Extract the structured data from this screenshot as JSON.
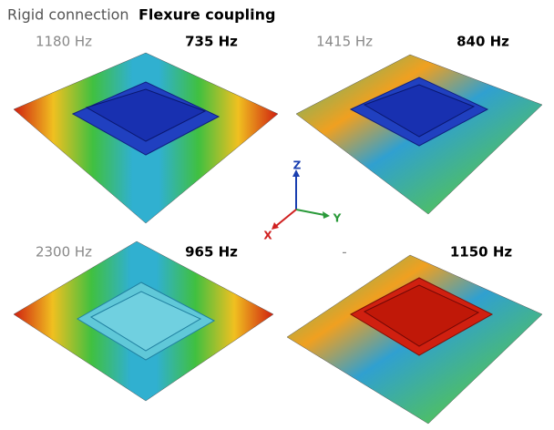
{
  "legend": {
    "rigid": "Rigid connection",
    "flexure": "Flexure coupling"
  },
  "panels": [
    {
      "rigid": "1180 Hz",
      "flexure": "735 Hz"
    },
    {
      "rigid": "1415 Hz",
      "flexure": "840 Hz"
    },
    {
      "rigid": "2300 Hz",
      "flexure": "965 Hz"
    },
    {
      "rigid": "-",
      "flexure": "1150 Hz"
    }
  ],
  "axes": {
    "z": "Z",
    "y": "Y",
    "x": "X"
  }
}
